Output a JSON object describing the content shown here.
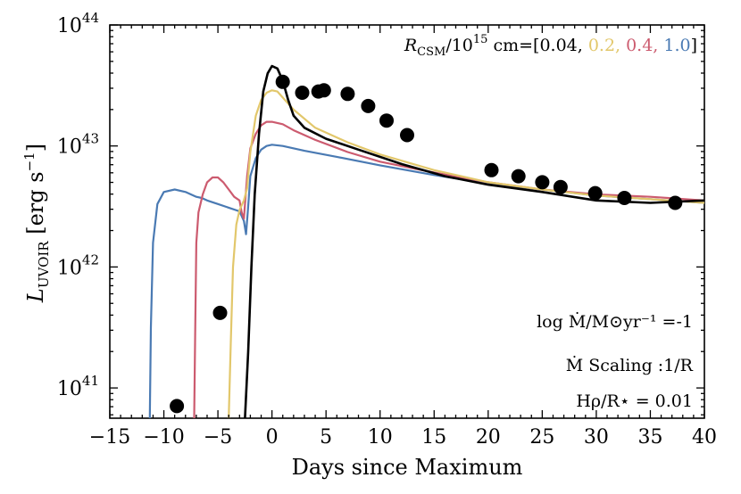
{
  "chart_data": {
    "type": "line",
    "xlabel": "Days since Maximum",
    "ylabel": {
      "base": "L",
      "sub": "UVOIR",
      "units_open": " [erg s",
      "units_exp": "−1",
      "units_close": "]"
    },
    "xlim": [
      -15,
      40
    ],
    "ylim_log10": [
      40.75,
      44
    ],
    "x_ticks": [
      -15,
      -10,
      -5,
      0,
      5,
      10,
      15,
      20,
      25,
      30,
      35,
      40
    ],
    "x_tick_labels": [
      "−15",
      "−10",
      "−5",
      "0",
      "5",
      "10",
      "15",
      "20",
      "25",
      "30",
      "35",
      "40"
    ],
    "y_ticks": [
      41,
      42,
      43,
      44
    ],
    "y_tick_labels": [
      {
        "base": "10",
        "exp": "41"
      },
      {
        "base": "10",
        "exp": "42"
      },
      {
        "base": "10",
        "exp": "43"
      },
      {
        "base": "10",
        "exp": "44"
      }
    ],
    "legend": {
      "placement": "top-right",
      "prefix_R": "R",
      "prefix_sub": "CSM",
      "prefix_mid": "/10",
      "prefix_exp": "15",
      "prefix_end": " cm=[",
      "entries": [
        {
          "label": "0.04,",
          "color": "#000000"
        },
        {
          "label": "0.2,",
          "color": "#e2c76b"
        },
        {
          "label": "0.4,",
          "color": "#cc5b6f"
        },
        {
          "label": "1.0",
          "color": "#4a7ab3"
        }
      ],
      "suffix": "]"
    },
    "annotations": [
      {
        "id": "mdot",
        "text": "log Ṁ/M⊙yr⁻¹ =-1"
      },
      {
        "id": "scaling",
        "text": "Ṁ Scaling :1/R"
      },
      {
        "id": "hrho",
        "text": "Hρ/R⋆ = 0.01"
      }
    ],
    "series": [
      {
        "name": "0.04",
        "color": "#000000",
        "points": [
          [
            -2.5,
            40.75
          ],
          [
            -2.2,
            41.3
          ],
          [
            -1.9,
            42.0
          ],
          [
            -1.6,
            42.6
          ],
          [
            -1.2,
            43.1
          ],
          [
            -0.8,
            43.45
          ],
          [
            -0.4,
            43.6
          ],
          [
            0,
            43.66
          ],
          [
            0.5,
            43.64
          ],
          [
            1,
            43.54
          ],
          [
            1.5,
            43.38
          ],
          [
            2,
            43.25
          ],
          [
            3,
            43.15
          ],
          [
            5,
            43.06
          ],
          [
            8,
            42.97
          ],
          [
            12,
            42.85
          ],
          [
            16,
            42.75
          ],
          [
            20,
            42.68
          ],
          [
            25,
            42.62
          ],
          [
            30,
            42.55
          ],
          [
            35,
            42.53
          ],
          [
            40,
            42.55
          ]
        ]
      },
      {
        "name": "0.2",
        "color": "#e2c76b",
        "points": [
          [
            -4.0,
            40.75
          ],
          [
            -3.8,
            41.4
          ],
          [
            -3.6,
            42.0
          ],
          [
            -3.3,
            42.35
          ],
          [
            -3.0,
            42.47
          ],
          [
            -2.6,
            42.55
          ],
          [
            -2.3,
            42.65
          ],
          [
            -2.0,
            42.95
          ],
          [
            -1.5,
            43.25
          ],
          [
            -1.0,
            43.38
          ],
          [
            -0.5,
            43.44
          ],
          [
            0,
            43.46
          ],
          [
            0.5,
            43.45
          ],
          [
            1,
            43.4
          ],
          [
            2,
            43.3
          ],
          [
            4,
            43.15
          ],
          [
            7,
            43.03
          ],
          [
            10,
            42.93
          ],
          [
            15,
            42.8
          ],
          [
            20,
            42.7
          ],
          [
            25,
            42.64
          ],
          [
            30,
            42.59
          ],
          [
            35,
            42.56
          ],
          [
            40,
            42.53
          ]
        ]
      },
      {
        "name": "0.4",
        "color": "#cc5b6f",
        "points": [
          [
            -7.2,
            40.75
          ],
          [
            -7.1,
            41.5
          ],
          [
            -7.0,
            42.2
          ],
          [
            -6.8,
            42.45
          ],
          [
            -6.4,
            42.6
          ],
          [
            -6.0,
            42.7
          ],
          [
            -5.5,
            42.74
          ],
          [
            -5.0,
            42.74
          ],
          [
            -4.5,
            42.7
          ],
          [
            -4.0,
            42.64
          ],
          [
            -3.5,
            42.58
          ],
          [
            -3.0,
            42.55
          ],
          [
            -2.8,
            42.45
          ],
          [
            -2.6,
            42.4
          ],
          [
            -2.3,
            42.75
          ],
          [
            -2.0,
            42.98
          ],
          [
            -1.5,
            43.1
          ],
          [
            -1.0,
            43.17
          ],
          [
            -0.5,
            43.2
          ],
          [
            0,
            43.2
          ],
          [
            1,
            43.18
          ],
          [
            2,
            43.13
          ],
          [
            4,
            43.05
          ],
          [
            7,
            42.95
          ],
          [
            10,
            42.87
          ],
          [
            15,
            42.78
          ],
          [
            20,
            42.7
          ],
          [
            25,
            42.64
          ],
          [
            30,
            42.6
          ],
          [
            35,
            42.58
          ],
          [
            40,
            42.55
          ]
        ]
      },
      {
        "name": "1.0",
        "color": "#4a7ab3",
        "points": [
          [
            -11.3,
            40.75
          ],
          [
            -11.2,
            41.5
          ],
          [
            -11.0,
            42.2
          ],
          [
            -10.6,
            42.52
          ],
          [
            -10.0,
            42.62
          ],
          [
            -9.0,
            42.64
          ],
          [
            -8.0,
            42.62
          ],
          [
            -7.5,
            42.6
          ],
          [
            -7.0,
            42.58
          ],
          [
            -6.5,
            42.57
          ],
          [
            -6.0,
            42.55
          ],
          [
            -5.0,
            42.52
          ],
          [
            -4.0,
            42.49
          ],
          [
            -3.0,
            42.46
          ],
          [
            -2.6,
            42.38
          ],
          [
            -2.4,
            42.27
          ],
          [
            -2.2,
            42.5
          ],
          [
            -2.0,
            42.75
          ],
          [
            -1.5,
            42.9
          ],
          [
            -1.0,
            42.97
          ],
          [
            -0.5,
            43.0
          ],
          [
            0,
            43.01
          ],
          [
            1,
            43.0
          ],
          [
            3,
            42.96
          ],
          [
            6,
            42.91
          ],
          [
            10,
            42.84
          ],
          [
            15,
            42.76
          ],
          [
            20,
            42.69
          ],
          [
            25,
            42.64
          ],
          [
            30,
            42.59
          ],
          [
            35,
            42.56
          ],
          [
            40,
            42.53
          ]
        ]
      }
    ],
    "observations": [
      [
        -8.8,
        40.85
      ],
      [
        -4.8,
        41.62
      ],
      [
        1.0,
        43.53
      ],
      [
        2.8,
        43.44
      ],
      [
        4.3,
        43.45
      ],
      [
        4.8,
        43.46
      ],
      [
        7.0,
        43.43
      ],
      [
        8.9,
        43.33
      ],
      [
        10.6,
        43.21
      ],
      [
        12.5,
        43.09
      ],
      [
        20.3,
        42.8
      ],
      [
        22.8,
        42.75
      ],
      [
        25.0,
        42.7
      ],
      [
        26.7,
        42.66
      ],
      [
        29.9,
        42.61
      ],
      [
        32.6,
        42.57
      ],
      [
        37.3,
        42.53
      ]
    ]
  }
}
